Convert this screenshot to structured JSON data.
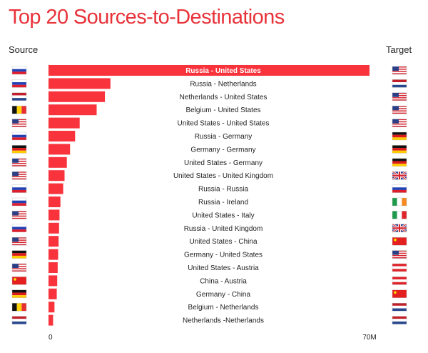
{
  "header": {
    "title": "Top 20 Sources-to-Destinations",
    "source_label": "Source",
    "target_label": "Target"
  },
  "colors": {
    "bar": "#f8333c",
    "title": "#e8333a"
  },
  "chart_data": {
    "type": "bar",
    "orientation": "horizontal",
    "title": "Top 20 Sources-to-Destinations",
    "xlim": [
      0,
      70
    ],
    "x_ticks": [
      "0",
      "70M"
    ],
    "grid": false,
    "rows": [
      {
        "label": "Russia - United States",
        "value": 70,
        "source": "russia-flag-icon",
        "target": "us-flag-icon"
      },
      {
        "label": "Russia - Netherlands",
        "value": 13.5,
        "source": "russia-flag-icon",
        "target": "netherlands-flag-icon"
      },
      {
        "label": "Netherlands - United States",
        "value": 12.3,
        "source": "netherlands-flag-icon",
        "target": "us-flag-icon"
      },
      {
        "label": "Belgium - United States",
        "value": 10.5,
        "source": "belgium-flag-icon",
        "target": "us-flag-icon"
      },
      {
        "label": "United States - United States",
        "value": 6.8,
        "source": "us-flag-icon",
        "target": "us-flag-icon"
      },
      {
        "label": "Russia - Germany",
        "value": 5.8,
        "source": "russia-flag-icon",
        "target": "germany-flag-icon"
      },
      {
        "label": "Germany - Germany",
        "value": 4.7,
        "source": "germany-flag-icon",
        "target": "germany-flag-icon"
      },
      {
        "label": "United States - Germany",
        "value": 4.0,
        "source": "us-flag-icon",
        "target": "germany-flag-icon"
      },
      {
        "label": "United States - United Kingdom",
        "value": 3.5,
        "source": "us-flag-icon",
        "target": "uk-flag-icon"
      },
      {
        "label": "Russia - Russia",
        "value": 3.2,
        "source": "russia-flag-icon",
        "target": "russia-flag-icon"
      },
      {
        "label": "Russia - Ireland",
        "value": 2.6,
        "source": "russia-flag-icon",
        "target": "ireland-flag-icon"
      },
      {
        "label": "United States - Italy",
        "value": 2.4,
        "source": "us-flag-icon",
        "target": "italy-flag-icon"
      },
      {
        "label": "Russia - United Kingdom",
        "value": 2.3,
        "source": "russia-flag-icon",
        "target": "uk-flag-icon"
      },
      {
        "label": "United States - China",
        "value": 2.2,
        "source": "us-flag-icon",
        "target": "china-flag-icon"
      },
      {
        "label": "Germany - United States",
        "value": 2.1,
        "source": "germany-flag-icon",
        "target": "us-flag-icon"
      },
      {
        "label": "United States - Austria",
        "value": 2.0,
        "source": "us-flag-icon",
        "target": "austria-flag-icon"
      },
      {
        "label": "China - Austria",
        "value": 1.9,
        "source": "china-flag-icon",
        "target": "austria-flag-icon"
      },
      {
        "label": "Germany - China",
        "value": 1.8,
        "source": "germany-flag-icon",
        "target": "china-flag-icon"
      },
      {
        "label": "Belgium - Netherlands",
        "value": 1.3,
        "source": "belgium-flag-icon",
        "target": "netherlands-flag-icon"
      },
      {
        "label": "Netherlands -Netherlands",
        "value": 1.0,
        "source": "netherlands-flag-icon",
        "target": "netherlands-flag-icon"
      }
    ]
  }
}
